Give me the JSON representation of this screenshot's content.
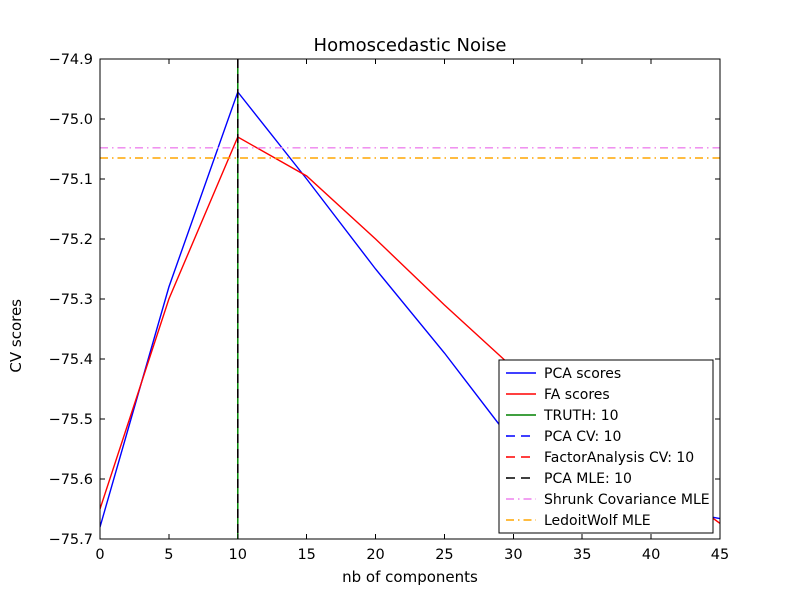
{
  "title": "Homoscedastic Noise",
  "axes": {
    "xlabel": "nb of components",
    "ylabel": "CV scores",
    "x_tick_labels": [
      "0",
      "5",
      "10",
      "15",
      "20",
      "25",
      "30",
      "35",
      "40",
      "45"
    ],
    "y_tick_labels": [
      "−74.9",
      "−75.0",
      "−75.1",
      "−75.2",
      "−75.3",
      "−75.4",
      "−75.5",
      "−75.6",
      "−75.7"
    ]
  },
  "chart_data": {
    "type": "line",
    "title": "Homoscedastic Noise",
    "xlabel": "nb of components",
    "ylabel": "CV scores",
    "xlim": [
      0,
      45
    ],
    "ylim": [
      -75.7,
      -74.9
    ],
    "grid": false,
    "x_ticks": [
      0,
      5,
      10,
      15,
      20,
      25,
      30,
      35,
      40,
      45
    ],
    "y_ticks": [
      -74.9,
      -75.0,
      -75.1,
      -75.2,
      -75.3,
      -75.4,
      -75.5,
      -75.6,
      -75.7
    ],
    "x": [
      0,
      5,
      10,
      15,
      20,
      25,
      30,
      35,
      40,
      45
    ],
    "series": [
      {
        "name": "PCA scores",
        "color": "#0000ff",
        "style": "solid",
        "values": [
          -75.68,
          -75.28,
          -74.955,
          -75.1,
          -75.25,
          -75.39,
          -75.54,
          -75.6,
          -75.645,
          -75.666
        ]
      },
      {
        "name": "FA scores",
        "color": "#ff0000",
        "style": "solid",
        "values": [
          -75.65,
          -75.3,
          -75.03,
          -75.095,
          -75.2,
          -75.31,
          -75.415,
          -75.5,
          -75.59,
          -75.674
        ]
      }
    ],
    "vlines": [
      {
        "label": "TRUTH: 10",
        "x": 10,
        "color": "#008000",
        "style": "solid"
      },
      {
        "label": "PCA CV: 10",
        "x": 10,
        "color": "#0000ff",
        "style": "dashed"
      },
      {
        "label": "FactorAnalysis CV: 10",
        "x": 10,
        "color": "#ff0000",
        "style": "dashed"
      },
      {
        "label": "PCA MLE: 10",
        "x": 10,
        "color": "#000000",
        "style": "dashed"
      }
    ],
    "hlines": [
      {
        "label": "Shrunk Covariance MLE",
        "y": -75.048,
        "color": "#ee82ee",
        "style": "dashdot"
      },
      {
        "label": "LedoitWolf MLE",
        "y": -75.065,
        "color": "#ffa500",
        "style": "dashdot"
      }
    ],
    "legend": {
      "position": "lower right",
      "entries": [
        {
          "label": "PCA scores",
          "color": "#0000ff",
          "style": "solid"
        },
        {
          "label": "FA scores",
          "color": "#ff0000",
          "style": "solid"
        },
        {
          "label": "TRUTH: 10",
          "color": "#008000",
          "style": "solid"
        },
        {
          "label": "PCA CV: 10",
          "color": "#0000ff",
          "style": "dashed"
        },
        {
          "label": "FactorAnalysis CV: 10",
          "color": "#ff0000",
          "style": "dashed"
        },
        {
          "label": "PCA MLE: 10",
          "color": "#000000",
          "style": "dashed"
        },
        {
          "label": "Shrunk Covariance MLE",
          "color": "#ee82ee",
          "style": "dashdot"
        },
        {
          "label": "LedoitWolf MLE",
          "color": "#ffa500",
          "style": "dashdot"
        }
      ]
    }
  }
}
